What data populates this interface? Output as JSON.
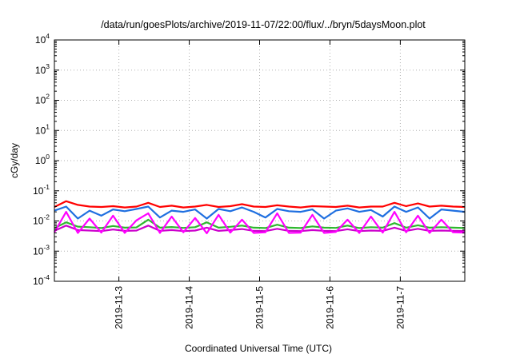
{
  "chart_data": {
    "type": "line",
    "title": "/data/run/goesPlots/archive/2019-11-07/22:00/flux/../bryn/5daysMoon.plot",
    "xlabel": "Coordinated Universal Time (UTC)",
    "ylabel": "cGy/day",
    "yscale": "log",
    "ylim": [
      0.0001,
      10000
    ],
    "y_ticks": [
      {
        "base": "10",
        "exp": "-4"
      },
      {
        "base": "10",
        "exp": "-3"
      },
      {
        "base": "10",
        "exp": "-2"
      },
      {
        "base": "10",
        "exp": "-1"
      },
      {
        "base": "10",
        "exp": "0"
      },
      {
        "base": "10",
        "exp": "1"
      },
      {
        "base": "10",
        "exp": "2"
      },
      {
        "base": "10",
        "exp": "3"
      },
      {
        "base": "10",
        "exp": "4"
      }
    ],
    "xlim": [
      "2019-11-02 02:00",
      "2019-11-07 22:00"
    ],
    "x_ticks": [
      "2019-11-3",
      "2019-11-4",
      "2019-11-5",
      "2019-11-6",
      "2019-11-7"
    ],
    "grid": true,
    "legend": "none",
    "series": [
      {
        "color": "#ff0000",
        "x": [
          "2019-11-02 02:00",
          "2019-11-02 06:00",
          "2019-11-02 10:00",
          "2019-11-02 14:00",
          "2019-11-02 18:00",
          "2019-11-02 22:00",
          "2019-11-03 02:00",
          "2019-11-03 06:00",
          "2019-11-03 10:00",
          "2019-11-03 14:00",
          "2019-11-03 18:00",
          "2019-11-03 22:00",
          "2019-11-04 02:00",
          "2019-11-04 06:00",
          "2019-11-04 10:00",
          "2019-11-04 14:00",
          "2019-11-04 18:00",
          "2019-11-04 22:00",
          "2019-11-05 02:00",
          "2019-11-05 06:00",
          "2019-11-05 10:00",
          "2019-11-05 14:00",
          "2019-11-05 18:00",
          "2019-11-05 22:00",
          "2019-11-06 02:00",
          "2019-11-06 06:00",
          "2019-11-06 10:00",
          "2019-11-06 14:00",
          "2019-11-06 18:00",
          "2019-11-06 22:00",
          "2019-11-07 02:00",
          "2019-11-07 06:00",
          "2019-11-07 10:00",
          "2019-11-07 14:00",
          "2019-11-07 18:00",
          "2019-11-07 22:00"
        ],
        "y": [
          0.029,
          0.045,
          0.034,
          0.03,
          0.029,
          0.031,
          0.028,
          0.03,
          0.04,
          0.029,
          0.032,
          0.028,
          0.03,
          0.034,
          0.029,
          0.031,
          0.036,
          0.03,
          0.029,
          0.033,
          0.03,
          0.028,
          0.031,
          0.03,
          0.029,
          0.032,
          0.028,
          0.03,
          0.03,
          0.04,
          0.031,
          0.038,
          0.03,
          0.032,
          0.03,
          0.029
        ]
      },
      {
        "color": "#1f6fe0",
        "x": [
          "2019-11-02 02:00",
          "2019-11-02 06:00",
          "2019-11-02 10:00",
          "2019-11-02 14:00",
          "2019-11-02 18:00",
          "2019-11-02 22:00",
          "2019-11-03 02:00",
          "2019-11-03 06:00",
          "2019-11-03 10:00",
          "2019-11-03 14:00",
          "2019-11-03 18:00",
          "2019-11-03 22:00",
          "2019-11-04 02:00",
          "2019-11-04 06:00",
          "2019-11-04 10:00",
          "2019-11-04 14:00",
          "2019-11-04 18:00",
          "2019-11-04 22:00",
          "2019-11-05 02:00",
          "2019-11-05 06:00",
          "2019-11-05 10:00",
          "2019-11-05 14:00",
          "2019-11-05 18:00",
          "2019-11-05 22:00",
          "2019-11-06 02:00",
          "2019-11-06 06:00",
          "2019-11-06 10:00",
          "2019-11-06 14:00",
          "2019-11-06 18:00",
          "2019-11-06 22:00",
          "2019-11-07 02:00",
          "2019-11-07 06:00",
          "2019-11-07 10:00",
          "2019-11-07 14:00",
          "2019-11-07 18:00",
          "2019-11-07 22:00"
        ],
        "y": [
          0.022,
          0.03,
          0.012,
          0.022,
          0.015,
          0.024,
          0.021,
          0.025,
          0.03,
          0.013,
          0.022,
          0.02,
          0.024,
          0.012,
          0.025,
          0.021,
          0.028,
          0.02,
          0.013,
          0.025,
          0.021,
          0.02,
          0.024,
          0.012,
          0.022,
          0.026,
          0.02,
          0.023,
          0.014,
          0.03,
          0.02,
          0.028,
          0.012,
          0.024,
          0.022,
          0.02
        ]
      },
      {
        "color": "#2eb82e",
        "x": [
          "2019-11-02 02:00",
          "2019-11-02 06:00",
          "2019-11-02 10:00",
          "2019-11-02 14:00",
          "2019-11-02 18:00",
          "2019-11-02 22:00",
          "2019-11-03 02:00",
          "2019-11-03 06:00",
          "2019-11-03 10:00",
          "2019-11-03 14:00",
          "2019-11-03 18:00",
          "2019-11-03 22:00",
          "2019-11-04 02:00",
          "2019-11-04 06:00",
          "2019-11-04 10:00",
          "2019-11-04 14:00",
          "2019-11-04 18:00",
          "2019-11-04 22:00",
          "2019-11-05 02:00",
          "2019-11-05 06:00",
          "2019-11-05 10:00",
          "2019-11-05 14:00",
          "2019-11-05 18:00",
          "2019-11-05 22:00",
          "2019-11-06 02:00",
          "2019-11-06 06:00",
          "2019-11-06 10:00",
          "2019-11-06 14:00",
          "2019-11-06 18:00",
          "2019-11-06 22:00",
          "2019-11-07 02:00",
          "2019-11-07 06:00",
          "2019-11-07 10:00",
          "2019-11-07 14:00",
          "2019-11-07 18:00",
          "2019-11-07 22:00"
        ],
        "y": [
          0.0058,
          0.009,
          0.0065,
          0.0062,
          0.0058,
          0.0068,
          0.006,
          0.0061,
          0.011,
          0.006,
          0.0063,
          0.0059,
          0.0062,
          0.009,
          0.006,
          0.0064,
          0.007,
          0.006,
          0.0058,
          0.0075,
          0.006,
          0.0058,
          0.0066,
          0.006,
          0.0059,
          0.007,
          0.0058,
          0.0062,
          0.006,
          0.0085,
          0.006,
          0.0072,
          0.006,
          0.0062,
          0.006,
          0.0058
        ]
      },
      {
        "color": "#cc00cc",
        "x": [
          "2019-11-02 02:00",
          "2019-11-02 06:00",
          "2019-11-02 10:00",
          "2019-11-02 14:00",
          "2019-11-02 18:00",
          "2019-11-02 22:00",
          "2019-11-03 02:00",
          "2019-11-03 06:00",
          "2019-11-03 10:00",
          "2019-11-03 14:00",
          "2019-11-03 18:00",
          "2019-11-03 22:00",
          "2019-11-04 02:00",
          "2019-11-04 06:00",
          "2019-11-04 10:00",
          "2019-11-04 14:00",
          "2019-11-04 18:00",
          "2019-11-04 22:00",
          "2019-11-05 02:00",
          "2019-11-05 06:00",
          "2019-11-05 10:00",
          "2019-11-05 14:00",
          "2019-11-05 18:00",
          "2019-11-05 22:00",
          "2019-11-06 02:00",
          "2019-11-06 06:00",
          "2019-11-06 10:00",
          "2019-11-06 14:00",
          "2019-11-06 18:00",
          "2019-11-06 22:00",
          "2019-11-07 02:00",
          "2019-11-07 06:00",
          "2019-11-07 10:00",
          "2019-11-07 14:00",
          "2019-11-07 18:00",
          "2019-11-07 22:00"
        ],
        "y": [
          0.0047,
          0.007,
          0.005,
          0.0048,
          0.0046,
          0.0052,
          0.0047,
          0.0048,
          0.007,
          0.0047,
          0.005,
          0.0046,
          0.0048,
          0.006,
          0.0047,
          0.005,
          0.0054,
          0.0047,
          0.0046,
          0.0055,
          0.0047,
          0.0046,
          0.005,
          0.0047,
          0.0046,
          0.0053,
          0.0046,
          0.0048,
          0.0047,
          0.006,
          0.0047,
          0.0055,
          0.0047,
          0.0048,
          0.0047,
          0.0046
        ]
      },
      {
        "color": "#ff00ff",
        "x": [
          "2019-11-02 02:00",
          "2019-11-02 06:00",
          "2019-11-02 10:00",
          "2019-11-02 14:00",
          "2019-11-02 18:00",
          "2019-11-02 22:00",
          "2019-11-03 02:00",
          "2019-11-03 06:00",
          "2019-11-03 10:00",
          "2019-11-03 14:00",
          "2019-11-03 18:00",
          "2019-11-03 22:00",
          "2019-11-04 02:00",
          "2019-11-04 06:00",
          "2019-11-04 10:00",
          "2019-11-04 14:00",
          "2019-11-04 18:00",
          "2019-11-04 22:00",
          "2019-11-05 02:00",
          "2019-11-05 06:00",
          "2019-11-05 10:00",
          "2019-11-05 14:00",
          "2019-11-05 18:00",
          "2019-11-05 22:00",
          "2019-11-06 02:00",
          "2019-11-06 06:00",
          "2019-11-06 10:00",
          "2019-11-06 14:00",
          "2019-11-06 18:00",
          "2019-11-06 22:00",
          "2019-11-07 02:00",
          "2019-11-07 06:00",
          "2019-11-07 10:00",
          "2019-11-07 14:00",
          "2019-11-07 18:00",
          "2019-11-07 22:00"
        ],
        "y": [
          0.0042,
          0.02,
          0.004,
          0.012,
          0.0041,
          0.015,
          0.004,
          0.0105,
          0.018,
          0.004,
          0.014,
          0.0042,
          0.0125,
          0.0039,
          0.016,
          0.0041,
          0.011,
          0.004,
          0.0042,
          0.018,
          0.004,
          0.0041,
          0.016,
          0.004,
          0.0043,
          0.011,
          0.004,
          0.014,
          0.0041,
          0.02,
          0.0042,
          0.015,
          0.004,
          0.011,
          0.0042,
          0.0041
        ]
      }
    ]
  }
}
